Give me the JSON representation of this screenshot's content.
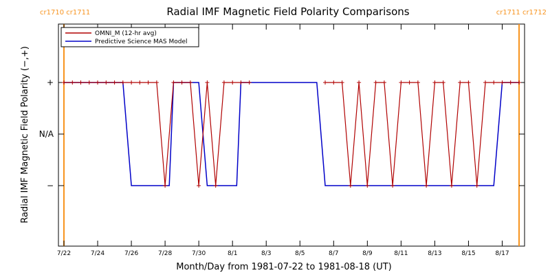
{
  "chart_data": {
    "type": "line",
    "title": "Radial IMF Magnetic Field Polarity Comparisons",
    "xlabel": "Month/Day from 1981-07-22 to 1981-08-18 (UT)",
    "ylabel": "Radial IMF Magnetic Field Polarity (−,+)",
    "xlim": [
      "1981-07-22",
      "1981-08-18"
    ],
    "x_ticks": [
      "7/22",
      "7/24",
      "7/26",
      "7/28",
      "7/30",
      "8/1",
      "8/3",
      "8/5",
      "8/7",
      "8/9",
      "8/11",
      "8/13",
      "8/15",
      "8/17"
    ],
    "y_ticks": [
      "+",
      "N/A",
      "−"
    ],
    "grid": false,
    "legend_position": "top-left",
    "carrington_labels": {
      "left": "cr1710 cr1711",
      "right": "cr1711 cr1712"
    },
    "series": [
      {
        "name": "OMNI_M (12-hr avg)",
        "color": "#b00000",
        "x": [
          "1981-07-22 00:00",
          "1981-07-22 12:00",
          "1981-07-23 00:00",
          "1981-07-23 12:00",
          "1981-07-24 00:00",
          "1981-07-24 12:00",
          "1981-07-25 00:00",
          "1981-07-25 12:00",
          "1981-07-26 00:00",
          "1981-07-26 12:00",
          "1981-07-27 00:00",
          "1981-07-27 12:00",
          "1981-07-28 00:00",
          "1981-07-28 12:00",
          "1981-07-29 00:00",
          "1981-07-29 12:00",
          "1981-07-30 00:00",
          "1981-07-30 12:00",
          "1981-07-31 00:00",
          "1981-07-31 12:00",
          "1981-08-01 00:00",
          "1981-08-01 12:00",
          "1981-08-02 00:00",
          "1981-08-06 12:00",
          "1981-08-07 00:00",
          "1981-08-07 12:00",
          "1981-08-08 00:00",
          "1981-08-08 12:00",
          "1981-08-09 00:00",
          "1981-08-09 12:00",
          "1981-08-10 00:00",
          "1981-08-10 12:00",
          "1981-08-11 00:00",
          "1981-08-11 12:00",
          "1981-08-12 00:00",
          "1981-08-12 12:00",
          "1981-08-13 00:00",
          "1981-08-13 12:00",
          "1981-08-14 00:00",
          "1981-08-14 12:00",
          "1981-08-15 00:00",
          "1981-08-15 12:00",
          "1981-08-16 00:00",
          "1981-08-16 12:00",
          "1981-08-17 00:00",
          "1981-08-17 12:00",
          "1981-08-18 00:00"
        ],
        "values": [
          1,
          1,
          1,
          1,
          1,
          1,
          1,
          1,
          1,
          1,
          1,
          1,
          -1,
          1,
          1,
          1,
          -1,
          1,
          -1,
          1,
          1,
          1,
          1,
          1,
          1,
          1,
          -1,
          1,
          -1,
          1,
          1,
          -1,
          1,
          1,
          1,
          -1,
          1,
          1,
          -1,
          1,
          1,
          -1,
          1,
          1,
          1,
          1,
          1
        ],
        "marker": "+"
      },
      {
        "name": "Predictive Science MAS Model",
        "color": "#0000c8",
        "x": [
          "1981-07-22 00:00",
          "1981-07-25 12:00",
          "1981-07-26 00:00",
          "1981-07-28 06:00",
          "1981-07-28 12:00",
          "1981-07-30 00:00",
          "1981-07-30 12:00",
          "1981-08-01 06:00",
          "1981-08-01 12:00",
          "1981-08-06 00:00",
          "1981-08-06 12:00",
          "1981-08-16 12:00",
          "1981-08-17 00:00",
          "1981-08-18 00:00"
        ],
        "values": [
          1,
          1,
          -1,
          -1,
          1,
          1,
          -1,
          -1,
          1,
          1,
          -1,
          -1,
          1,
          1
        ]
      }
    ]
  }
}
